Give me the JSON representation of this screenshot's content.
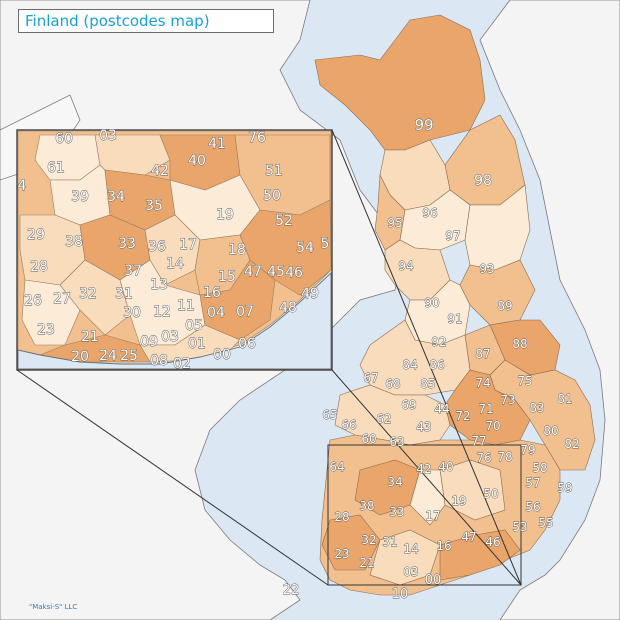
{
  "title": "Finland (postcodes map)",
  "credit": "\"Maksi-S\" LLC",
  "colors": {
    "sea": "#dbe7f3",
    "land_neighbors": "#f4f4f4",
    "coast": "#6f6f6f",
    "title_text": "#19a0d8",
    "credit_text": "#2f78c8",
    "fill_dark": "#eaa66a",
    "fill_mid": "#f2c08f",
    "fill_light": "#f8dcbc",
    "fill_pale": "#fcebd6"
  },
  "main_labels": [
    "99",
    "98",
    "95",
    "96",
    "97",
    "94",
    "93",
    "90",
    "91",
    "89",
    "92",
    "88",
    "87",
    "84",
    "86",
    "75",
    "67",
    "68",
    "85",
    "74",
    "81",
    "73",
    "83",
    "69",
    "71",
    "72",
    "44",
    "65",
    "66",
    "62",
    "43",
    "70",
    "80",
    "82",
    "60",
    "63",
    "77",
    "76",
    "78",
    "79",
    "64",
    "42",
    "40",
    "58",
    "57",
    "59",
    "34",
    "56",
    "38",
    "19",
    "50",
    "33",
    "55",
    "17",
    "53",
    "28",
    "32",
    "31",
    "14",
    "16",
    "47",
    "46",
    "23",
    "21",
    "03",
    "22",
    "00",
    "10"
  ],
  "inset_labels": [
    "60",
    "03",
    "41",
    "76",
    "61",
    "40",
    "42",
    "51",
    "4",
    "39",
    "34",
    "35",
    "50",
    "19",
    "52",
    "29",
    "38",
    "33",
    "36",
    "17",
    "18",
    "54",
    "5",
    "28",
    "37",
    "14",
    "47",
    "45",
    "46",
    "13",
    "15",
    "49",
    "26",
    "27",
    "32",
    "31",
    "16",
    "23",
    "30",
    "12",
    "11",
    "04",
    "07",
    "05",
    "48",
    "21",
    "09",
    "03",
    "01",
    "06",
    "20",
    "24",
    "25",
    "08",
    "00",
    "02"
  ]
}
